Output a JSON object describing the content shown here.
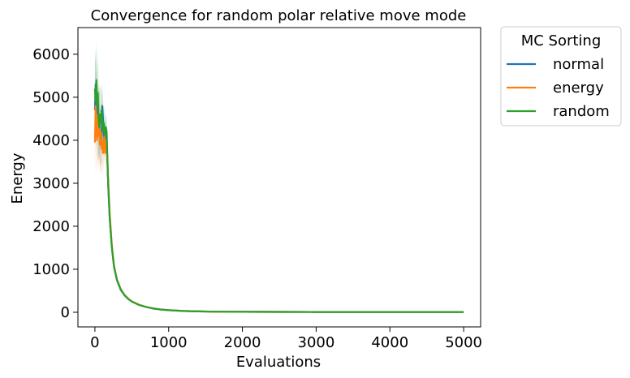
{
  "chart_data": {
    "type": "line",
    "title": "Convergence for random polar relative move mode",
    "xlabel": "Evaluations",
    "ylabel": "Energy",
    "xlim": [
      -230,
      5230
    ],
    "ylim": [
      -340,
      6620
    ],
    "xticks": [
      0,
      1000,
      2000,
      3000,
      4000,
      5000
    ],
    "yticks": [
      0,
      1000,
      2000,
      3000,
      4000,
      5000,
      6000
    ],
    "grid": false,
    "legend": {
      "title": "MC Sorting",
      "placement": "outside-top-right"
    },
    "colors": {
      "normal": "#1f77b4",
      "energy": "#ff7f0e",
      "random": "#2ca02c"
    },
    "series": [
      {
        "name": "normal",
        "color": "#1f77b4",
        "x": [
          0,
          10,
          20,
          30,
          40,
          50,
          60,
          70,
          80,
          90,
          100,
          110,
          120,
          130,
          140,
          150,
          160,
          180,
          200,
          230,
          260,
          300,
          350,
          400,
          450,
          500,
          600,
          700,
          800,
          900,
          1000,
          1200,
          1400,
          1600,
          1800,
          2000,
          2500,
          3000,
          3500,
          4000,
          4500,
          5000
        ],
        "y": [
          4700,
          5300,
          4600,
          4900,
          4300,
          4400,
          4500,
          3900,
          4200,
          4000,
          4800,
          4500,
          4200,
          3900,
          4300,
          4300,
          4000,
          3000,
          2200,
          1500,
          1050,
          740,
          520,
          400,
          310,
          250,
          170,
          120,
          85,
          62,
          48,
          30,
          20,
          15,
          12,
          10,
          9,
          8,
          8,
          8,
          8,
          8
        ],
        "band": [
          800,
          800,
          800,
          800,
          800,
          800,
          800,
          700,
          700,
          600,
          500,
          500,
          400,
          400,
          300,
          300,
          200,
          150,
          100,
          60,
          40,
          30,
          20,
          15,
          10,
          10,
          5,
          5,
          4,
          3,
          2,
          2,
          1,
          1,
          1,
          1,
          1,
          1,
          1,
          1,
          1,
          1
        ]
      },
      {
        "name": "energy",
        "color": "#ff7f0e",
        "x": [
          0,
          10,
          20,
          30,
          40,
          50,
          60,
          70,
          80,
          90,
          100,
          110,
          120,
          130,
          140,
          150,
          160,
          180,
          200,
          230,
          260,
          300,
          350,
          400,
          450,
          500,
          600,
          700,
          800,
          900,
          1000,
          1200,
          1400,
          1600,
          1800,
          2000,
          2500,
          3000,
          3500,
          4000,
          4500,
          5000
        ],
        "y": [
          3950,
          4800,
          4300,
          4000,
          4600,
          4100,
          4400,
          3900,
          4200,
          3800,
          4000,
          3700,
          3900,
          4100,
          3700,
          3800,
          3900,
          3100,
          2300,
          1550,
          1080,
          760,
          540,
          410,
          320,
          255,
          175,
          122,
          88,
          64,
          50,
          31,
          21,
          15,
          12,
          10,
          9,
          8,
          8,
          8,
          8,
          8
        ],
        "band": [
          800,
          800,
          800,
          800,
          800,
          800,
          800,
          700,
          700,
          600,
          500,
          500,
          400,
          400,
          300,
          300,
          200,
          150,
          100,
          60,
          40,
          30,
          20,
          15,
          10,
          10,
          5,
          5,
          4,
          3,
          2,
          2,
          1,
          1,
          1,
          1,
          1,
          1,
          1,
          1,
          1,
          1
        ]
      },
      {
        "name": "random",
        "color": "#2ca02c",
        "x": [
          0,
          10,
          20,
          30,
          40,
          50,
          60,
          70,
          80,
          90,
          100,
          110,
          120,
          130,
          140,
          150,
          160,
          180,
          200,
          230,
          260,
          300,
          350,
          400,
          450,
          500,
          600,
          700,
          800,
          900,
          1000,
          1200,
          1400,
          1600,
          1800,
          2000,
          2500,
          3000,
          3500,
          4000,
          4500,
          5000
        ],
        "y": [
          5200,
          4900,
          5400,
          4800,
          5100,
          4500,
          4300,
          4600,
          4400,
          4700,
          4500,
          4200,
          4400,
          4300,
          4100,
          4300,
          4200,
          3000,
          2200,
          1500,
          1050,
          750,
          530,
          400,
          310,
          250,
          170,
          120,
          86,
          63,
          49,
          30,
          20,
          15,
          12,
          10,
          9,
          8,
          8,
          8,
          8,
          8
        ],
        "band": [
          900,
          900,
          900,
          900,
          900,
          800,
          800,
          700,
          700,
          600,
          500,
          500,
          400,
          400,
          300,
          300,
          200,
          150,
          100,
          60,
          40,
          30,
          20,
          15,
          10,
          10,
          5,
          5,
          4,
          3,
          2,
          2,
          1,
          1,
          1,
          1,
          1,
          1,
          1,
          1,
          1,
          1
        ]
      }
    ]
  }
}
